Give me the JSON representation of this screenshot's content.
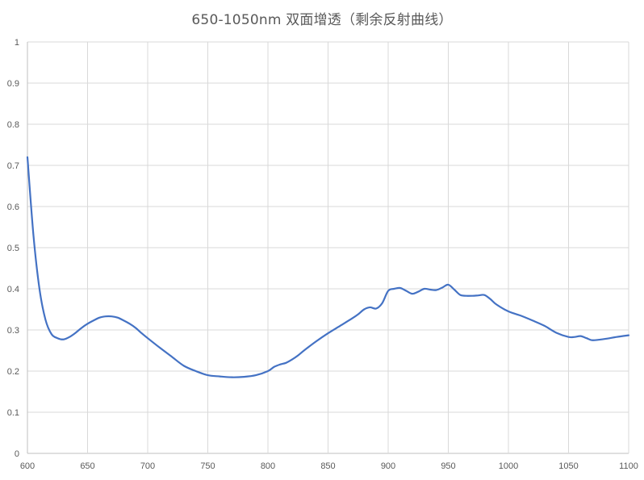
{
  "chart_data": {
    "type": "line",
    "title": "650-1050nm 双面增透（剩余反射曲线）",
    "xlabel": "",
    "ylabel": "",
    "xlim": [
      600,
      1100
    ],
    "ylim": [
      0,
      1
    ],
    "x_ticks": [
      "600",
      "650",
      "700",
      "750",
      "800",
      "850",
      "900",
      "950",
      "1000",
      "1050",
      "1100"
    ],
    "y_ticks": [
      "0",
      "0.1",
      "0.2",
      "0.3",
      "0.4",
      "0.5",
      "0.6",
      "0.7",
      "0.8",
      "0.9",
      "1"
    ],
    "grid": true,
    "legend": "none",
    "line_color": "#4472C4",
    "grid_color": "#D9D9D9",
    "axis_color": "#BFBFBF",
    "series": [
      {
        "x": [
          600,
          605,
          610,
          615,
          620,
          625,
          630,
          635,
          640,
          645,
          650,
          655,
          660,
          665,
          670,
          675,
          680,
          685,
          690,
          695,
          700,
          710,
          720,
          730,
          740,
          750,
          760,
          770,
          780,
          790,
          800,
          805,
          810,
          815,
          820,
          825,
          830,
          840,
          850,
          860,
          870,
          875,
          880,
          885,
          890,
          895,
          900,
          905,
          910,
          915,
          920,
          925,
          930,
          935,
          940,
          945,
          950,
          955,
          960,
          965,
          970,
          975,
          980,
          985,
          990,
          1000,
          1010,
          1020,
          1030,
          1040,
          1050,
          1055,
          1060,
          1065,
          1070,
          1080,
          1090,
          1100
        ],
        "y": [
          0.72,
          0.53,
          0.4,
          0.325,
          0.29,
          0.28,
          0.277,
          0.283,
          0.293,
          0.305,
          0.315,
          0.323,
          0.33,
          0.333,
          0.333,
          0.33,
          0.323,
          0.315,
          0.305,
          0.292,
          0.28,
          0.257,
          0.235,
          0.213,
          0.2,
          0.19,
          0.187,
          0.185,
          0.186,
          0.19,
          0.2,
          0.21,
          0.216,
          0.22,
          0.228,
          0.238,
          0.25,
          0.272,
          0.292,
          0.31,
          0.328,
          0.338,
          0.35,
          0.355,
          0.352,
          0.365,
          0.395,
          0.4,
          0.402,
          0.395,
          0.388,
          0.393,
          0.4,
          0.398,
          0.397,
          0.403,
          0.41,
          0.398,
          0.385,
          0.383,
          0.383,
          0.384,
          0.385,
          0.375,
          0.362,
          0.345,
          0.335,
          0.323,
          0.31,
          0.293,
          0.283,
          0.283,
          0.285,
          0.28,
          0.275,
          0.278,
          0.283,
          0.287
        ]
      }
    ]
  }
}
